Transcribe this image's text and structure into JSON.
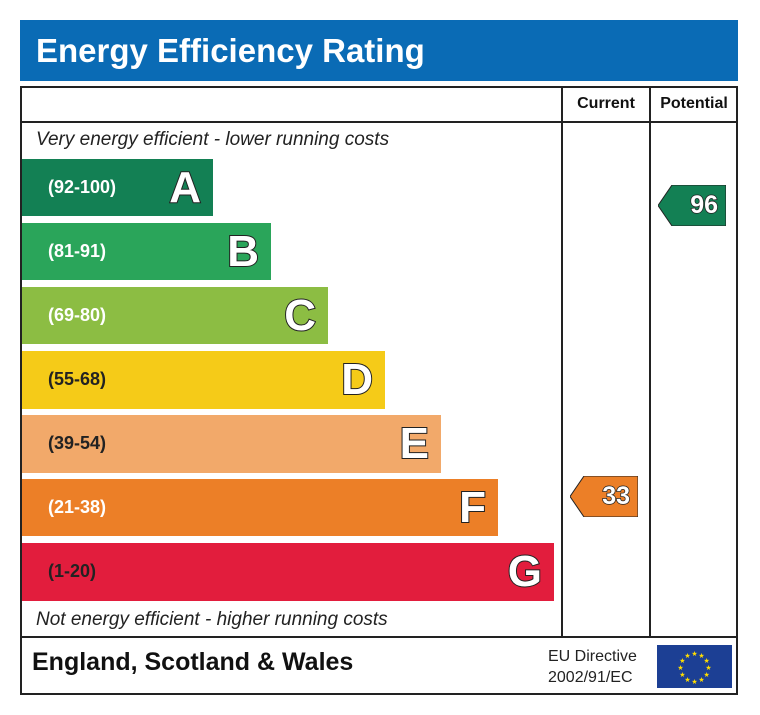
{
  "title": "Energy Efficiency Rating",
  "columns": {
    "current": "Current",
    "potential": "Potential"
  },
  "top_note": "Very energy efficient - lower running costs",
  "bottom_note": "Not energy efficient - higher running costs",
  "footer": {
    "region": "England, Scotland & Wales",
    "directive_line1": "EU Directive",
    "directive_line2": "2002/91/EC",
    "flag_icon": "eu-flag-icon"
  },
  "chart_data": {
    "type": "bar",
    "categories": [
      "A",
      "B",
      "C",
      "D",
      "E",
      "F",
      "G"
    ],
    "bands": [
      {
        "letter": "A",
        "range": "(92-100)",
        "color": "#138054"
      },
      {
        "letter": "B",
        "range": "(81-91)",
        "color": "#2aa55a"
      },
      {
        "letter": "C",
        "range": "(69-80)",
        "color": "#8cbd43"
      },
      {
        "letter": "D",
        "range": "(55-68)",
        "color": "#f5cb18"
      },
      {
        "letter": "E",
        "range": "(39-54)",
        "color": "#f2a96a"
      },
      {
        "letter": "F",
        "range": "(21-38)",
        "color": "#ec7f27"
      },
      {
        "letter": "G",
        "range": "(1-20)",
        "color": "#e21d3d"
      }
    ],
    "current": {
      "value": "33",
      "band": "F",
      "color": "#ec7f27"
    },
    "potential": {
      "value": "96",
      "band": "A",
      "color": "#138054"
    }
  }
}
